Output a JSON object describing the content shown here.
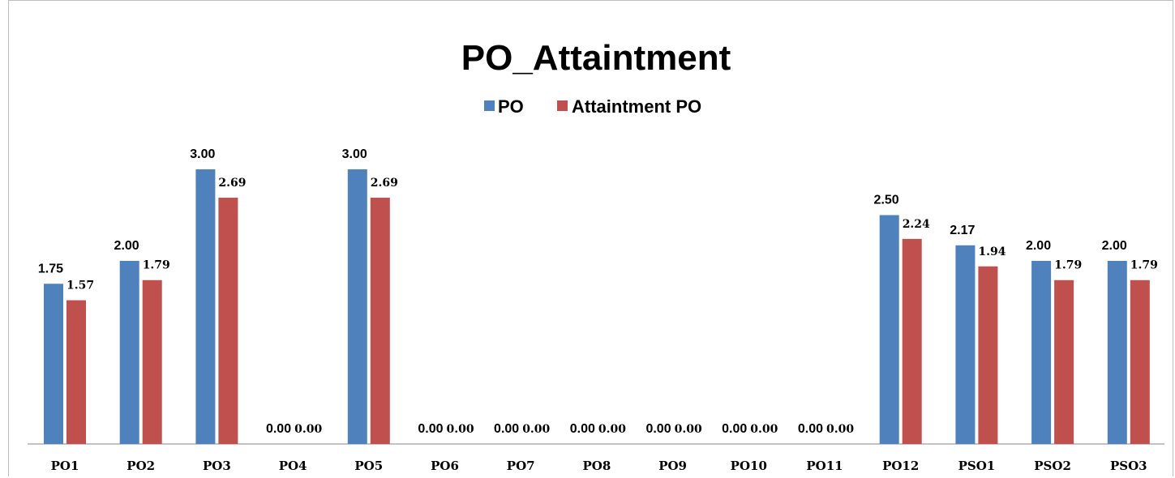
{
  "chart_data": {
    "type": "bar",
    "title": "PO_Attaintment",
    "xlabel": "",
    "ylabel": "",
    "categories": [
      "PO1",
      "PO2",
      "PO3",
      "PO4",
      "PO5",
      "PO6",
      "PO7",
      "PO8",
      "PO9",
      "PO10",
      "PO11",
      "PO12",
      "PSO1",
      "PSO2",
      "PSO3"
    ],
    "series": [
      {
        "name": "PO",
        "color": "#4F81BD",
        "values": [
          1.75,
          2.0,
          3.0,
          0.0,
          3.0,
          0.0,
          0.0,
          0.0,
          0.0,
          0.0,
          0.0,
          2.5,
          2.17,
          2.0,
          2.0
        ],
        "labels": [
          "1.75",
          "2.00",
          "3.00",
          "0.00",
          "3.00",
          "0.00",
          "0.00",
          "0.00",
          "0.00",
          "0.00",
          "0.00",
          "2.50",
          "2.17",
          "2.00",
          "2.00"
        ]
      },
      {
        "name": "Attaintment PO",
        "color": "#C0504D",
        "values": [
          1.57,
          1.79,
          2.69,
          0.0,
          2.69,
          0.0,
          0.0,
          0.0,
          0.0,
          0.0,
          0.0,
          2.24,
          1.94,
          1.79,
          1.79
        ],
        "labels": [
          "1.57",
          "1.79",
          "2.69",
          "0.00",
          "2.69",
          "0.00",
          "0.00",
          "0.00",
          "0.00",
          "0.00",
          "0.00",
          "2.24",
          "1.94",
          "1.79",
          "1.79"
        ]
      }
    ],
    "ylim": [
      0,
      3.4
    ],
    "grid": false,
    "legend_position": "top-center",
    "data_labels": true
  }
}
